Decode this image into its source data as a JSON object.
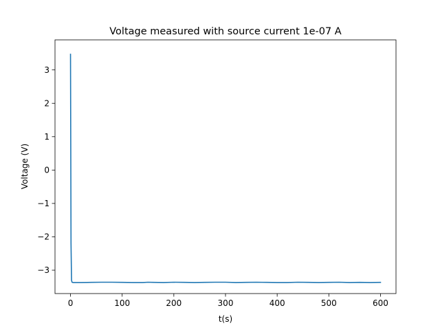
{
  "chart_data": {
    "type": "line",
    "title": "Voltage measured with source current 1e-07 A",
    "xlabel": "t(s)",
    "ylabel": "Voltage (V)",
    "xlim": [
      -30,
      630
    ],
    "ylim": [
      -3.7,
      3.9
    ],
    "xticks": [
      0,
      100,
      200,
      300,
      400,
      500,
      600
    ],
    "yticks": [
      -3,
      -2,
      -1,
      0,
      1,
      2,
      3
    ],
    "ytick_labels": [
      "−3",
      "−2",
      "−1",
      "0",
      "1",
      "2",
      "3"
    ],
    "grid": false,
    "series": [
      {
        "color": "#1f77b4",
        "x": [
          0,
          0.5,
          1,
          2,
          3,
          5,
          20,
          40,
          60,
          80,
          100,
          120,
          140,
          150,
          160,
          180,
          200,
          220,
          240,
          260,
          280,
          300,
          320,
          340,
          360,
          380,
          400,
          420,
          440,
          460,
          480,
          500,
          520,
          540,
          560,
          580,
          600
        ],
        "y": [
          3.47,
          0.8,
          -2.2,
          -3.3,
          -3.36,
          -3.37,
          -3.37,
          -3.365,
          -3.36,
          -3.36,
          -3.365,
          -3.37,
          -3.37,
          -3.36,
          -3.365,
          -3.37,
          -3.36,
          -3.365,
          -3.37,
          -3.365,
          -3.36,
          -3.36,
          -3.37,
          -3.365,
          -3.36,
          -3.365,
          -3.37,
          -3.37,
          -3.36,
          -3.365,
          -3.37,
          -3.365,
          -3.36,
          -3.37,
          -3.365,
          -3.37,
          -3.365
        ]
      }
    ]
  }
}
